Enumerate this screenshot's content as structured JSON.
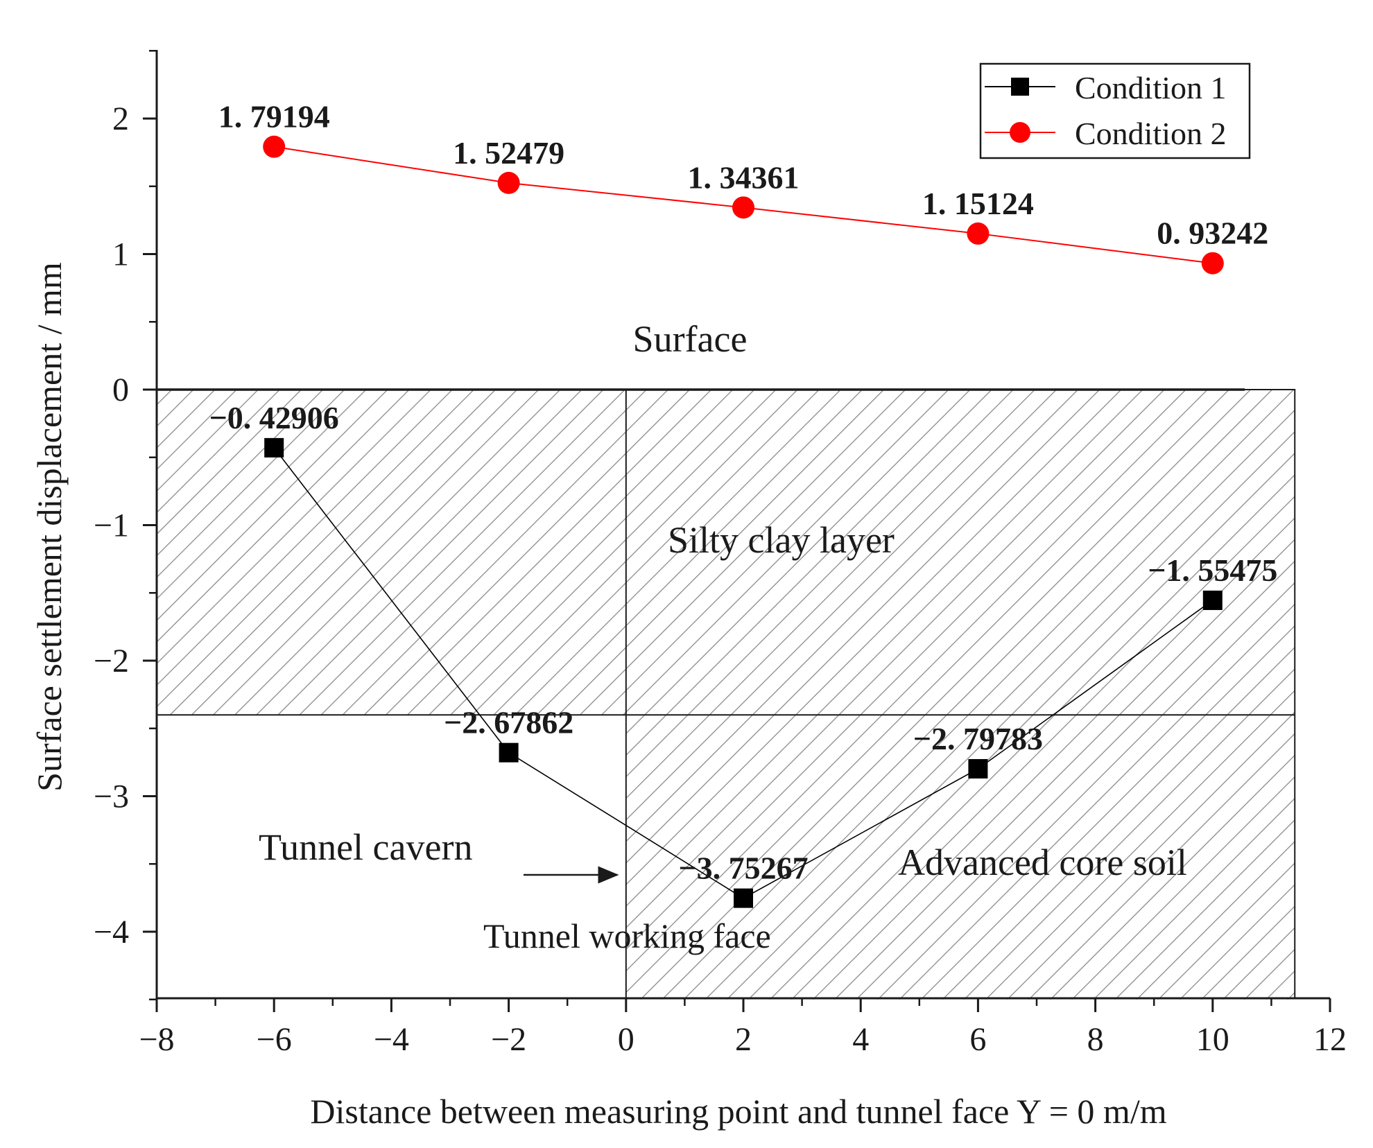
{
  "chart_data": {
    "type": "line",
    "xlabel": "Distance between measuring point and tunnel face Y = 0 m/m",
    "ylabel": "Surface settlement displacement / mm",
    "xlim": [
      -8,
      12
    ],
    "ylim": [
      -4.5,
      2.5
    ],
    "x_ticks": [
      -8,
      -6,
      -4,
      -2,
      0,
      2,
      4,
      6,
      8,
      10,
      12
    ],
    "x_tick_labels": [
      "−8",
      "−6",
      "−4",
      "−2",
      "0",
      "2",
      "4",
      "6",
      "8",
      "10",
      "12"
    ],
    "y_ticks": [
      2,
      1,
      0,
      -1,
      -2,
      -3,
      -4
    ],
    "y_tick_labels": [
      "2",
      "1",
      "0",
      "−1",
      "−2",
      "−3",
      "−4"
    ],
    "grid": false,
    "legend_position": "top-right",
    "series": [
      {
        "name": "Condition 1",
        "marker": "square",
        "color": "#000000",
        "x": [
          -6,
          -2,
          2,
          6,
          10
        ],
        "values": [
          -0.42906,
          -2.67862,
          -3.75267,
          -2.79783,
          -1.55475
        ],
        "labels": [
          "−0. 42906",
          "−2. 67862",
          "−3. 75267",
          "−2. 79783",
          "−1. 55475"
        ]
      },
      {
        "name": "Condition 2",
        "marker": "circle",
        "color": "#ff0000",
        "x": [
          -6,
          -2,
          2,
          6,
          10
        ],
        "values": [
          1.79194,
          1.52479,
          1.34361,
          1.15124,
          0.93242
        ],
        "labels": [
          "1. 79194",
          "1. 52479",
          "1. 34361",
          "1. 15124",
          "0. 93242"
        ]
      }
    ],
    "annotations": {
      "surface": "Surface",
      "silty_clay": "Silty clay layer",
      "tunnel_cavern": "Tunnel cavern",
      "core_soil": "Advanced core soil",
      "working_face": "Tunnel working face"
    },
    "regions": {
      "silty_clay_layer": {
        "x_range": [
          -8,
          11.4
        ],
        "y_range": [
          -2.4,
          0
        ]
      },
      "advanced_core_soil": {
        "x_range": [
          0,
          11.4
        ],
        "y_range": [
          -4.5,
          -2.4
        ]
      },
      "tunnel_working_face_x": 0,
      "layer_boundary_y": -2.4
    }
  }
}
